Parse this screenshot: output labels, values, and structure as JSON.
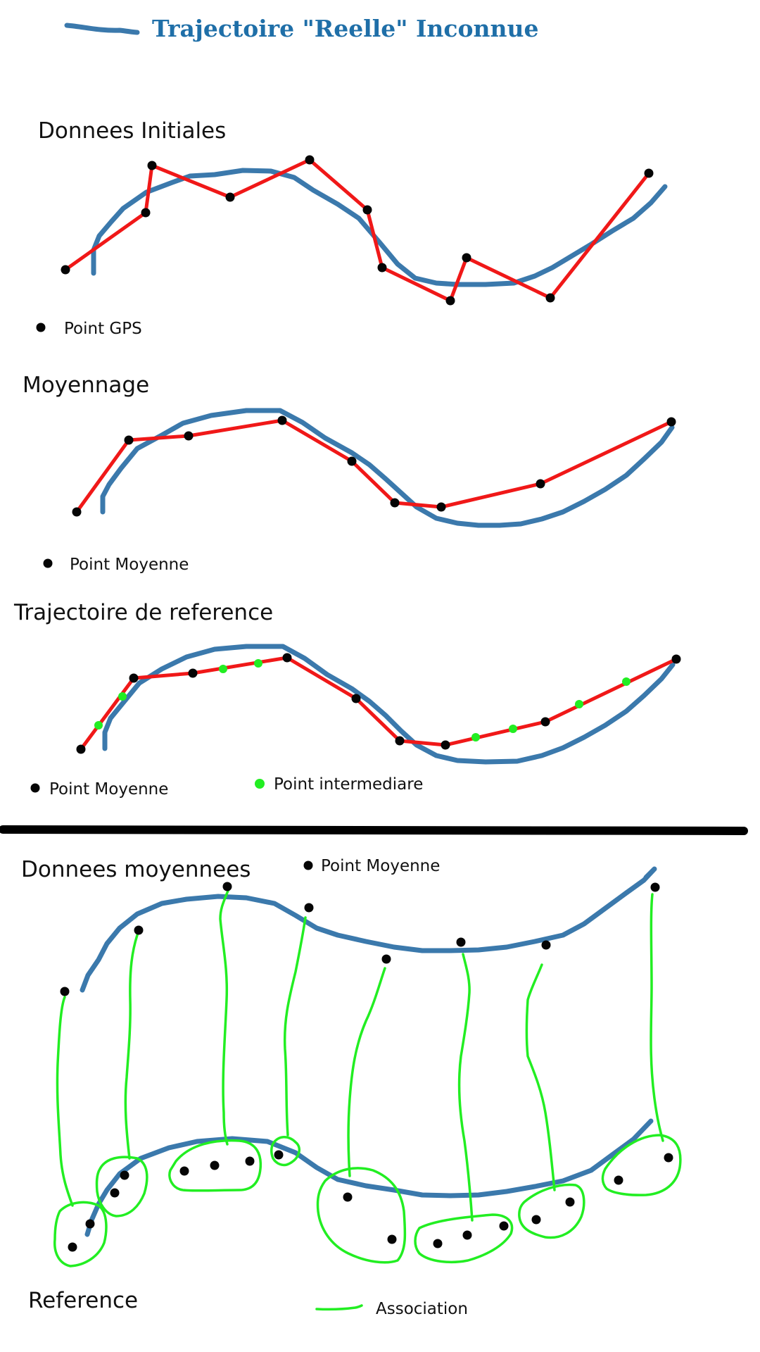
{
  "header": {
    "title": "Trajectoire \"Reelle\" Inconnue"
  },
  "sections": {
    "initial": {
      "title": "Donnees Initiales",
      "legend": "Point GPS"
    },
    "averaging": {
      "title": "Moyennage",
      "legend": "Point Moyenne"
    },
    "reference_traj": {
      "title": "Trajectoire de reference",
      "legend_black": "Point Moyenne",
      "legend_green": "Point intermediare"
    },
    "averaged_data": {
      "title": "Donnees moyennees",
      "legend": "Point Moyenne"
    },
    "reference": {
      "title": "Reference",
      "legend": "Association"
    }
  },
  "colors": {
    "real_trajectory": "#2a6ea5",
    "title": "#1f6fa8",
    "segment": "#f01818",
    "intermediate": "#22ee22",
    "association": "#22ee22",
    "point": "#050505"
  }
}
